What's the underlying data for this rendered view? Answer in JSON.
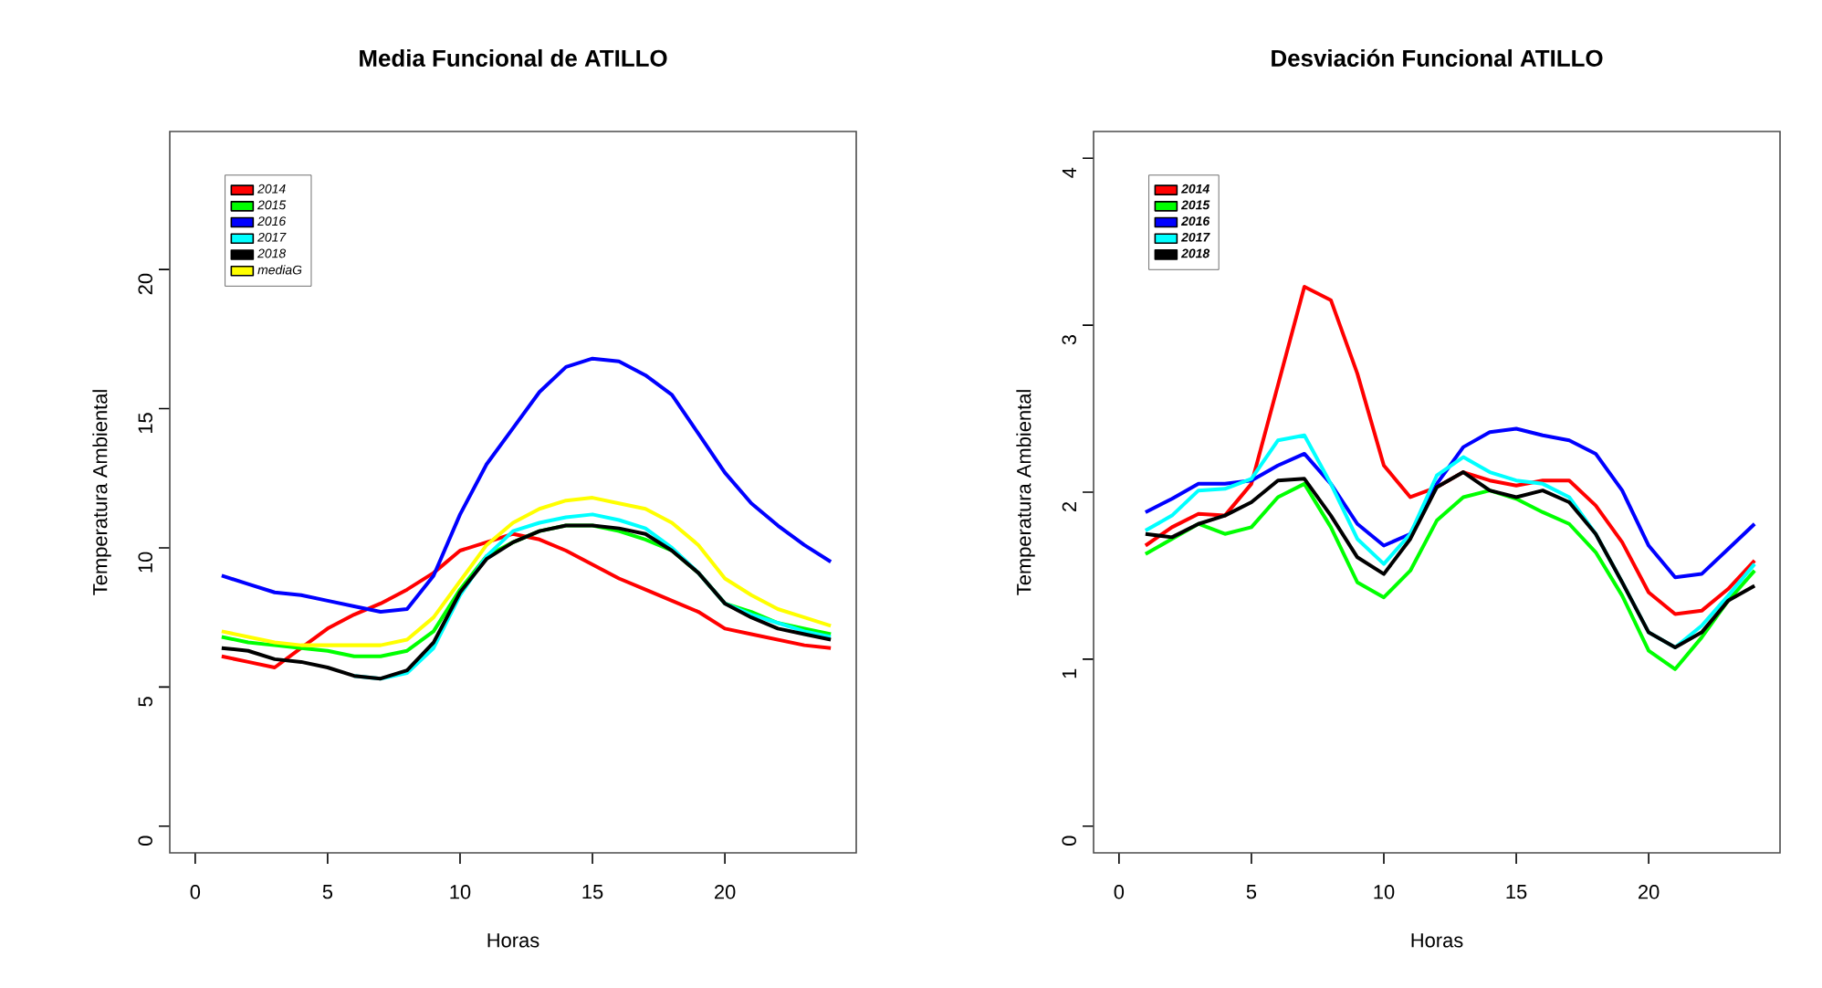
{
  "chart_data": [
    {
      "type": "line",
      "title": "Media Funcional de  ATILLO",
      "xlabel": "Horas",
      "ylabel": "Temperatura Ambiental",
      "x": [
        1,
        2,
        3,
        4,
        5,
        6,
        7,
        8,
        9,
        10,
        11,
        12,
        13,
        14,
        15,
        16,
        17,
        18,
        19,
        20,
        21,
        22,
        23,
        24
      ],
      "xlim": [
        -0.96,
        24.96
      ],
      "ylim": [
        -0.96,
        24.96
      ],
      "xticks": [
        0,
        5,
        10,
        15,
        20
      ],
      "yticks": [
        0,
        5,
        10,
        15,
        20
      ],
      "legend": "top left",
      "grid": false,
      "marker": "none",
      "line_style": "solid",
      "series": [
        {
          "name": "2014",
          "color": "#ff0000",
          "values": [
            6.1,
            5.9,
            5.7,
            6.4,
            7.1,
            7.6,
            8.0,
            8.5,
            9.1,
            9.9,
            10.2,
            10.5,
            10.3,
            9.9,
            9.4,
            8.9,
            8.5,
            8.1,
            7.7,
            7.1,
            6.9,
            6.7,
            6.5,
            6.4
          ]
        },
        {
          "name": "2015",
          "color": "#00ff00",
          "values": [
            6.8,
            6.6,
            6.5,
            6.4,
            6.3,
            6.1,
            6.1,
            6.3,
            7.0,
            8.5,
            9.7,
            10.2,
            10.6,
            10.8,
            10.8,
            10.6,
            10.3,
            9.9,
            9.1,
            8.0,
            7.7,
            7.3,
            7.1,
            6.9
          ]
        },
        {
          "name": "2016",
          "color": "#0000ff",
          "values": [
            9.0,
            8.7,
            8.4,
            8.3,
            8.1,
            7.9,
            7.7,
            7.8,
            9.0,
            11.2,
            13.0,
            14.3,
            15.6,
            16.5,
            16.8,
            16.7,
            16.2,
            15.5,
            14.1,
            12.7,
            11.6,
            10.8,
            10.1,
            9.5
          ]
        },
        {
          "name": "2017",
          "color": "#00ffff",
          "values": [
            null,
            null,
            null,
            null,
            null,
            5.4,
            5.3,
            5.5,
            6.4,
            8.3,
            9.7,
            10.6,
            10.9,
            11.1,
            11.2,
            11.0,
            10.7,
            10.0,
            9.1,
            8.0,
            7.6,
            7.3,
            7.0,
            6.8
          ]
        },
        {
          "name": "2018",
          "color": "#000000",
          "values": [
            6.4,
            6.3,
            6.0,
            5.9,
            5.7,
            5.4,
            5.3,
            5.6,
            6.6,
            8.4,
            9.6,
            10.2,
            10.6,
            10.8,
            10.8,
            10.7,
            10.5,
            9.9,
            9.1,
            8.0,
            7.5,
            7.1,
            6.9,
            6.7
          ]
        },
        {
          "name": "mediaG",
          "color": "#ffff00",
          "values": [
            7.0,
            6.8,
            6.6,
            6.5,
            6.5,
            6.5,
            6.5,
            6.7,
            7.5,
            8.8,
            10.1,
            10.9,
            11.4,
            11.7,
            11.8,
            11.6,
            11.4,
            10.9,
            10.1,
            8.9,
            8.3,
            7.8,
            7.5,
            7.2
          ]
        }
      ]
    },
    {
      "type": "line",
      "title": "Desviación Funcional ATILLO",
      "xlabel": "Horas",
      "ylabel": "Temperatura Ambiental",
      "x": [
        1,
        2,
        3,
        4,
        5,
        6,
        7,
        8,
        9,
        10,
        11,
        12,
        13,
        14,
        15,
        16,
        17,
        18,
        19,
        20,
        21,
        22,
        23,
        24
      ],
      "xlim": [
        -0.96,
        24.96
      ],
      "ylim": [
        -0.16,
        4.16
      ],
      "xticks": [
        0,
        5,
        10,
        15,
        20
      ],
      "yticks": [
        0,
        1,
        2,
        3,
        4
      ],
      "legend": "top left",
      "grid": false,
      "marker": "none",
      "line_style": "solid",
      "series": [
        {
          "name": "2014",
          "color": "#ff0000",
          "values": [
            1.68,
            1.79,
            1.87,
            1.86,
            2.05,
            2.64,
            3.23,
            3.15,
            2.71,
            2.16,
            1.97,
            2.03,
            2.12,
            2.07,
            2.04,
            2.07,
            2.07,
            1.92,
            1.7,
            1.4,
            1.27,
            1.29,
            1.42,
            1.59
          ]
        },
        {
          "name": "2015",
          "color": "#00ff00",
          "values": [
            1.63,
            1.72,
            1.81,
            1.75,
            1.79,
            1.97,
            2.05,
            1.79,
            1.46,
            1.37,
            1.53,
            1.83,
            1.97,
            2.01,
            1.96,
            1.88,
            1.81,
            1.64,
            1.38,
            1.05,
            0.94,
            1.13,
            1.35,
            1.53
          ]
        },
        {
          "name": "2016",
          "color": "#0000ff",
          "values": [
            1.88,
            1.96,
            2.05,
            2.05,
            2.07,
            2.16,
            2.23,
            2.05,
            1.81,
            1.68,
            1.75,
            2.05,
            2.27,
            2.36,
            2.38,
            2.34,
            2.31,
            2.23,
            2.01,
            1.68,
            1.49,
            1.51,
            1.66,
            1.81
          ]
        },
        {
          "name": "2017",
          "color": "#00ffff",
          "values": [
            1.77,
            1.86,
            2.01,
            2.02,
            2.08,
            2.31,
            2.34,
            2.05,
            1.72,
            1.57,
            1.75,
            2.1,
            2.21,
            2.12,
            2.07,
            2.05,
            1.97,
            1.75,
            1.46,
            1.16,
            1.07,
            1.2,
            1.38,
            1.57
          ]
        },
        {
          "name": "2018",
          "color": "#000000",
          "values": [
            1.75,
            1.73,
            1.81,
            1.86,
            1.94,
            2.07,
            2.08,
            1.86,
            1.61,
            1.51,
            1.72,
            2.03,
            2.12,
            2.01,
            1.97,
            2.01,
            1.94,
            1.75,
            1.46,
            1.16,
            1.07,
            1.16,
            1.35,
            1.44
          ]
        }
      ]
    }
  ]
}
